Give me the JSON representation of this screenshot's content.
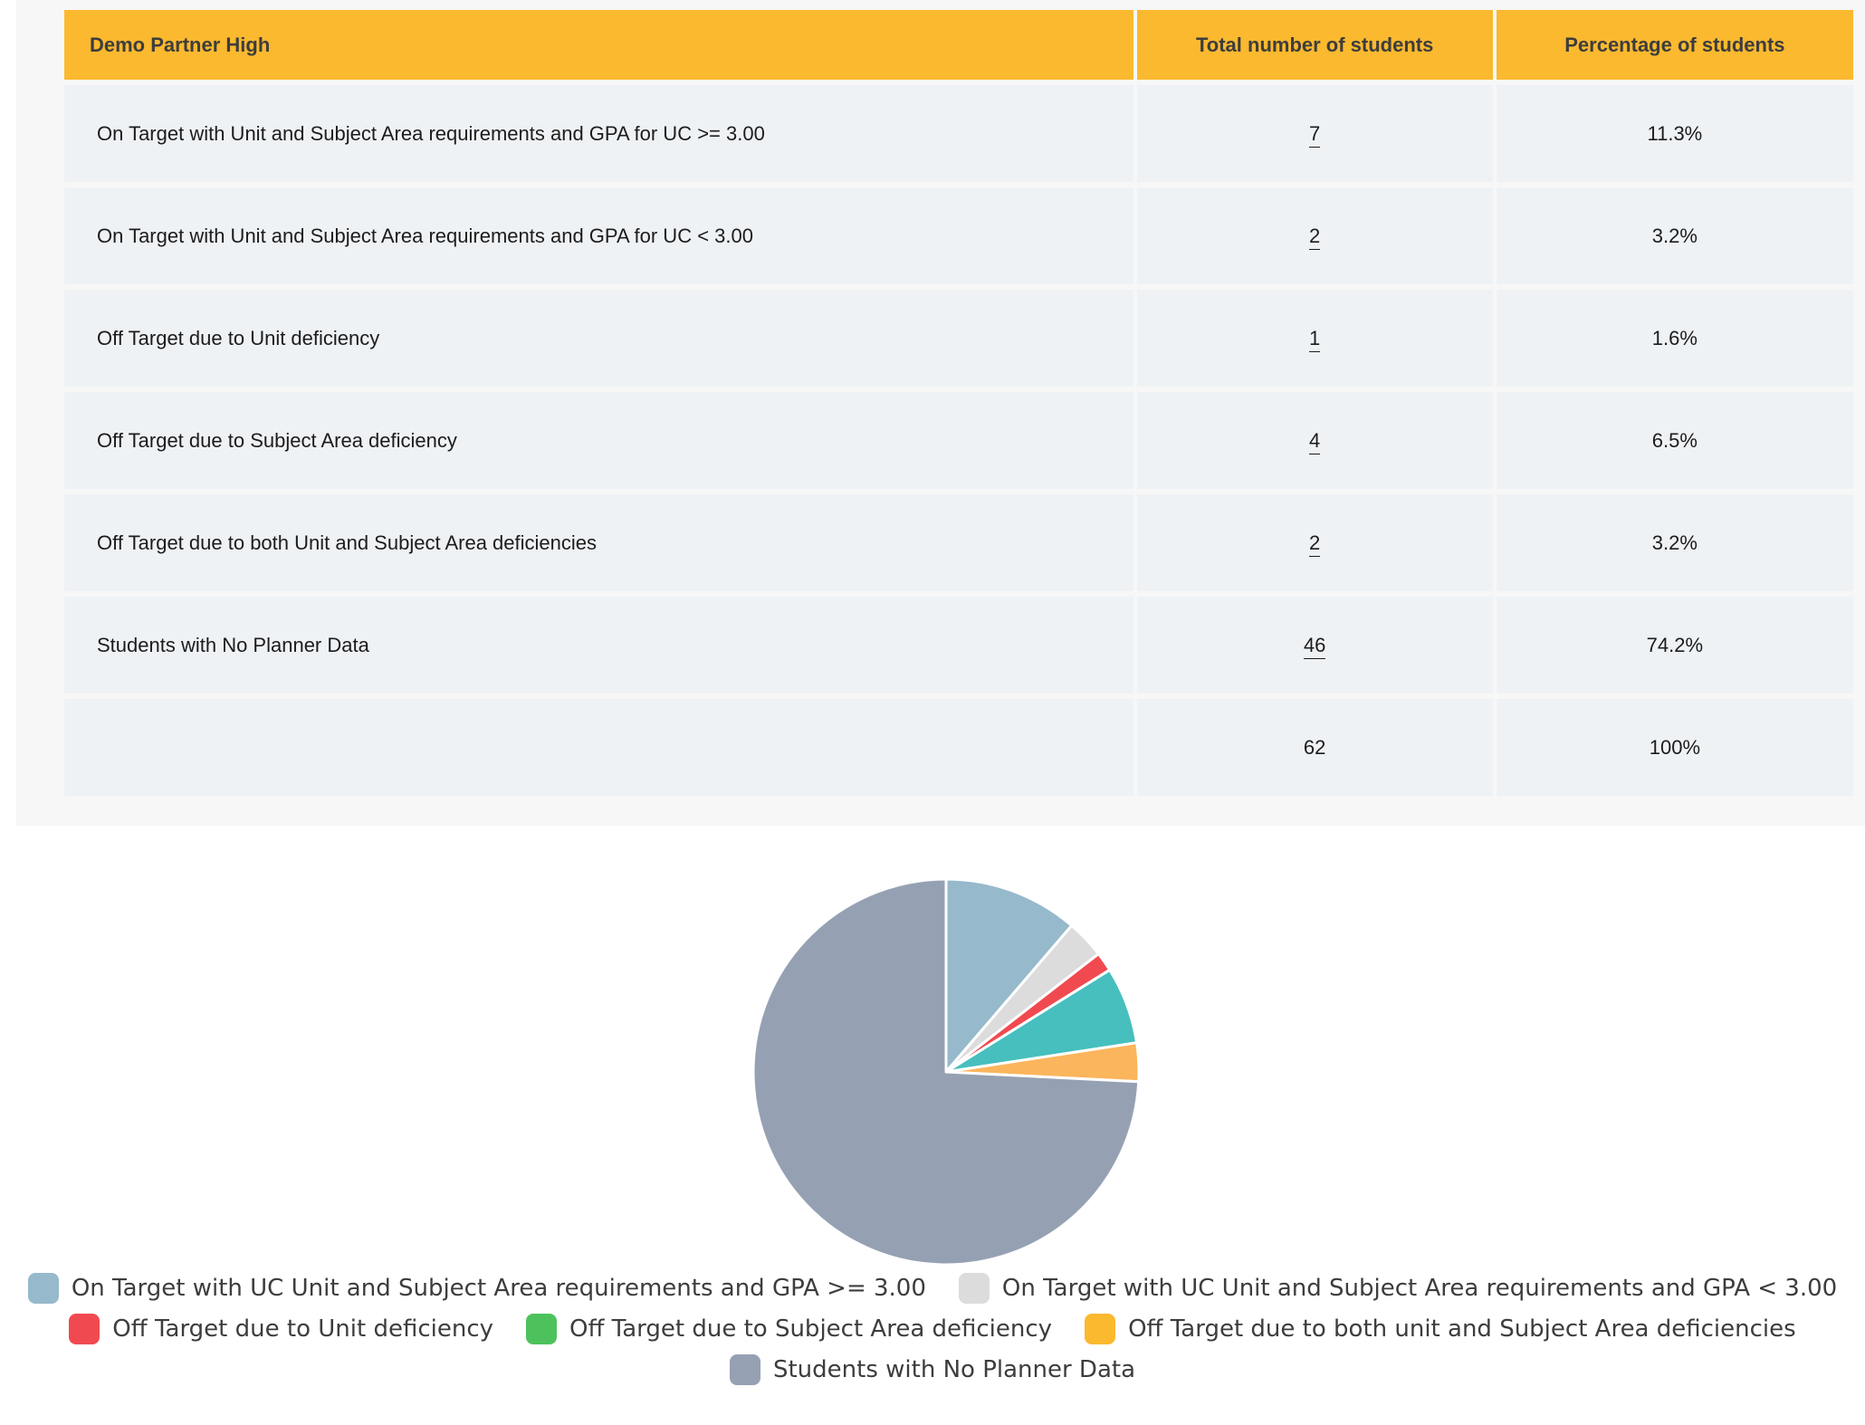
{
  "table": {
    "headers": [
      "Demo Partner High",
      "Total number of students",
      "Percentage of students"
    ],
    "rows": [
      {
        "label": "On Target with Unit and Subject Area requirements and GPA for UC >= 3.00",
        "count": "7",
        "pct": "11.3%"
      },
      {
        "label": "On Target with Unit and Subject Area requirements and GPA for UC < 3.00",
        "count": "2",
        "pct": "3.2%"
      },
      {
        "label": "Off Target due to Unit deficiency",
        "count": "1",
        "pct": "1.6%"
      },
      {
        "label": "Off Target due to Subject Area deficiency",
        "count": "4",
        "pct": "6.5%"
      },
      {
        "label": "Off Target due to both Unit and Subject Area deficiencies",
        "count": "2",
        "pct": "3.2%"
      },
      {
        "label": "Students with No Planner Data",
        "count": "46",
        "pct": "74.2%"
      }
    ],
    "total": {
      "label": "",
      "count": "62",
      "pct": "100%"
    }
  },
  "colors": {
    "header": "#fbb92f",
    "cell": "#eff2f5"
  },
  "chart_data": {
    "type": "pie",
    "title": "",
    "slices": [
      {
        "name": "On Target with UC Unit and Subject Area requirements and GPA >= 3.00",
        "value": 7,
        "color": "#96b9cc"
      },
      {
        "name": "On Target with UC Unit and Subject Area requirements and GPA < 3.00",
        "value": 2,
        "color": "#dcdcdc"
      },
      {
        "name": "Off Target due to Unit deficiency",
        "value": 1,
        "color": "#f04a50"
      },
      {
        "name": "Off Target due to Subject Area deficiency",
        "value": 4,
        "color": "#46bfbe",
        "legend_color": "#4dc25c"
      },
      {
        "name": "Off Target due to both unit and Subject Area deficiencies",
        "value": 2,
        "color": "#fbb55c",
        "legend_color": "#fbb92f"
      },
      {
        "name": "Students with No Planner Data",
        "value": 46,
        "color": "#95a1b3"
      }
    ],
    "legend_position": "bottom"
  }
}
